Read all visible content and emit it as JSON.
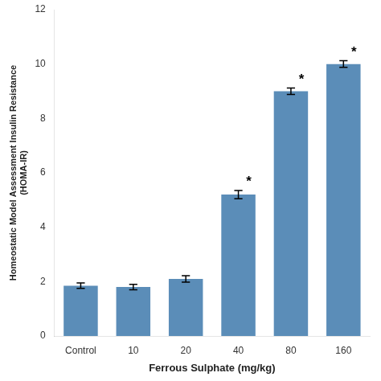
{
  "chart_data": {
    "type": "bar",
    "categories": [
      "Control",
      "10",
      "20",
      "40",
      "80",
      "160"
    ],
    "values": [
      1.85,
      1.8,
      2.1,
      5.2,
      9.0,
      10.0
    ],
    "errors": [
      0.1,
      0.1,
      0.12,
      0.15,
      0.12,
      0.12
    ],
    "significance": [
      null,
      null,
      null,
      "*",
      "*",
      "*"
    ],
    "color": "#5B8DB8",
    "xlabel": "Ferrous Sulphate (mg/kg)",
    "ylabel": [
      "Homeostatic Model Assessment Insulin Resistance",
      "(HOMA-IR)"
    ],
    "ylim": [
      0,
      12
    ],
    "yticks": [
      0,
      2,
      4,
      6,
      8,
      10,
      12
    ],
    "grid": false
  }
}
